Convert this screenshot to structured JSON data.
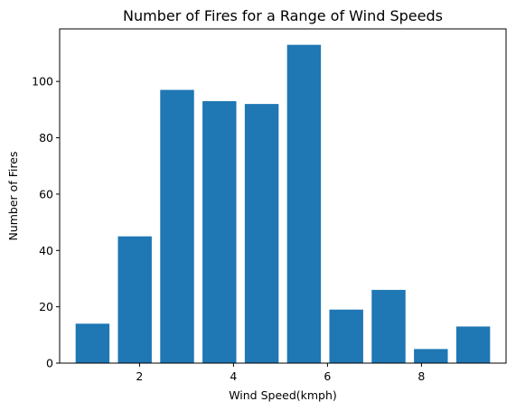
{
  "chart_data": {
    "type": "bar",
    "title": "Number of Fires for a Range of Wind Speeds",
    "xlabel": "Wind Speed(kmph)",
    "ylabel": "Number of Fires",
    "bar_color": "#1f77b4",
    "x": [
      1.0,
      1.9,
      2.8,
      3.7,
      4.6,
      5.5,
      6.4,
      7.3,
      8.2,
      9.1
    ],
    "values": [
      14,
      45,
      97,
      93,
      92,
      113,
      19,
      26,
      5,
      13
    ],
    "bar_width": 0.72,
    "xlim": [
      0.3,
      9.8
    ],
    "ylim": [
      0,
      118.65
    ],
    "xticks": [
      2,
      4,
      6,
      8
    ],
    "yticks": [
      0,
      20,
      40,
      60,
      80,
      100
    ],
    "grid": false,
    "legend": "none"
  }
}
